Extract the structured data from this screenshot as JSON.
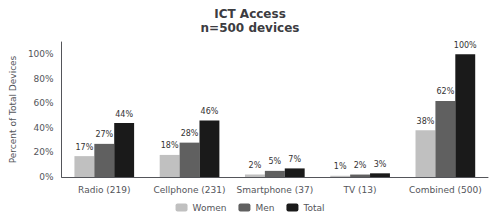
{
  "chart_data": {
    "type": "bar",
    "title": "ICT Access\nn=500 devices",
    "ylabel": "Percent of Total Devices",
    "categories": [
      "Radio (219)",
      "Cellphone (231)",
      "Smartphone (37)",
      "TV (13)",
      "Combined (500)"
    ],
    "series": [
      {
        "name": "Women",
        "color": "#c0c0c0",
        "values": [
          17,
          18,
          2,
          1,
          38
        ],
        "value_labels": [
          "17%",
          "18%",
          "2%",
          "1%",
          "38%"
        ]
      },
      {
        "name": "Men",
        "color": "#606060",
        "values": [
          27,
          28,
          5,
          2,
          62
        ],
        "value_labels": [
          "27%",
          "28%",
          "5%",
          "2%",
          "62%"
        ]
      },
      {
        "name": "Total",
        "color": "#1a1a1a",
        "values": [
          44,
          46,
          7,
          3,
          100
        ],
        "value_labels": [
          "44%",
          "46%",
          "7%",
          "3%",
          "100%"
        ]
      }
    ],
    "ylim": [
      0,
      110
    ],
    "yticks": [
      {
        "value": 0,
        "label": "0%"
      },
      {
        "value": 20,
        "label": "20%"
      },
      {
        "value": 40,
        "label": "40%"
      },
      {
        "value": 60,
        "label": "60%"
      },
      {
        "value": 80,
        "label": "80%"
      },
      {
        "value": 100,
        "label": "100%"
      }
    ],
    "grid": false,
    "legend": "bottom",
    "data_labels": true
  }
}
